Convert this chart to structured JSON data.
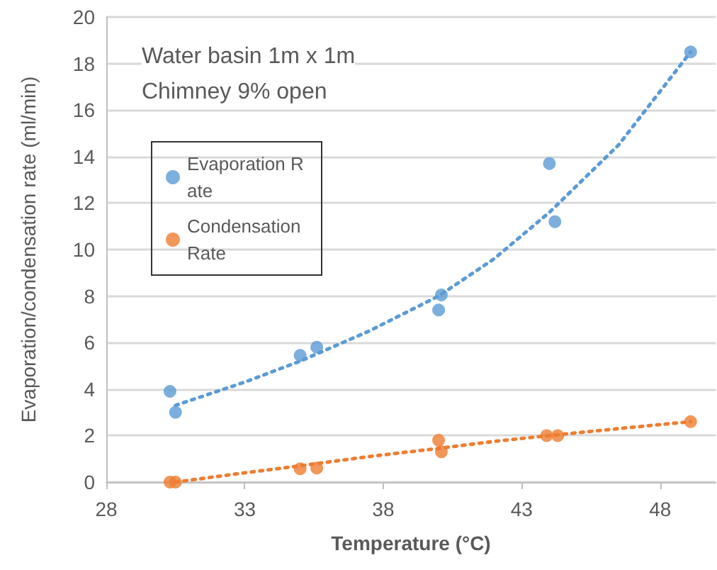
{
  "chart_data": {
    "type": "scatter",
    "xlabel": "Temperature (°C)",
    "ylabel": "Evaporation/condensation rate (ml/min)",
    "annotations": [
      "Water basin 1m x 1m",
      "Chimney 9% open"
    ],
    "xlim": [
      28,
      50
    ],
    "xticks": [
      28,
      33,
      38,
      43,
      48
    ],
    "ylim": [
      0,
      20
    ],
    "yticks": [
      0,
      2,
      4,
      6,
      8,
      10,
      12,
      14,
      16,
      18,
      20
    ],
    "grid": "y",
    "legend": "top left",
    "marker": "circle",
    "series": [
      {
        "name": "Evaporation Rate",
        "color": "#5b9bd5",
        "x": [
          30.3,
          30.5,
          35.0,
          35.6,
          40.1,
          40.0,
          44.0,
          44.2,
          49.1
        ],
        "values": [
          3.9,
          3.0,
          5.45,
          5.8,
          8.05,
          7.4,
          13.7,
          11.2,
          18.5
        ]
      },
      {
        "name": "Condensation Rate",
        "color": "#ed7d31",
        "x": [
          30.3,
          30.5,
          35.0,
          35.6,
          40.0,
          40.1,
          43.9,
          44.3,
          49.1
        ],
        "values": [
          0,
          0,
          0.57,
          0.6,
          1.8,
          1.3,
          2.0,
          2.0,
          2.6
        ]
      },
      {
        "type": "line",
        "line_style": "dotted",
        "marker": "none",
        "color": "#5b9bd5",
        "x": [
          30.5,
          33,
          35,
          37.5,
          40,
          42,
          44,
          46.5,
          49.1
        ],
        "values": [
          3.3,
          4.3,
          5.2,
          6.5,
          8.0,
          9.6,
          11.6,
          14.5,
          18.5
        ]
      },
      {
        "type": "line",
        "line_style": "dotted",
        "marker": "none",
        "color": "#ed7d31",
        "x": [
          30.5,
          33,
          35,
          37.5,
          40,
          42,
          44,
          46.5,
          49.1
        ],
        "values": [
          0,
          0.4,
          0.7,
          1.1,
          1.45,
          1.75,
          2.0,
          2.3,
          2.6
        ]
      }
    ]
  }
}
